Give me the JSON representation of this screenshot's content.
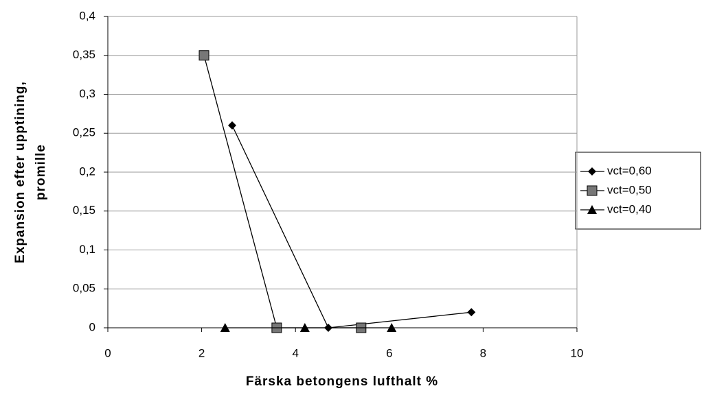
{
  "chart_data": {
    "type": "line",
    "xlabel": "Färska betongens lufthalt %",
    "ylabel": [
      "Expansion efter upptining,",
      "promille"
    ],
    "xlim": [
      0,
      10
    ],
    "xticks": [
      0,
      2,
      4,
      6,
      8,
      10
    ],
    "ylim": [
      0,
      0.4
    ],
    "yticks": [
      0,
      {
        "value": 0.05,
        "label": "0,05"
      },
      {
        "value": 0.1,
        "label": "0,1"
      },
      {
        "value": 0.15,
        "label": "0,15"
      },
      {
        "value": 0.2,
        "label": "0,2"
      },
      {
        "value": 0.25,
        "label": "0,25"
      },
      {
        "value": 0.3,
        "label": "0,3"
      },
      {
        "value": 0.35,
        "label": "0,35"
      },
      {
        "value": 0.4,
        "label": "0,4"
      }
    ],
    "grid": true,
    "legend": "right",
    "series": [
      {
        "name": "vct=0,60",
        "color": "#000000",
        "marker": "diamond",
        "x": [
          2.65,
          4.7,
          7.75
        ],
        "values": [
          0.26,
          0,
          0.02
        ]
      },
      {
        "name": "vct=0,50",
        "color": "#000000",
        "marker": "square",
        "x": [
          2.05,
          3.6,
          5.4
        ],
        "values": [
          0.35,
          0,
          0
        ]
      },
      {
        "name": "vct=0,40",
        "color": "#000000",
        "marker": "triangle",
        "x": [
          2.5,
          4.2,
          6.05
        ],
        "values": [
          0,
          0,
          0
        ]
      }
    ]
  }
}
